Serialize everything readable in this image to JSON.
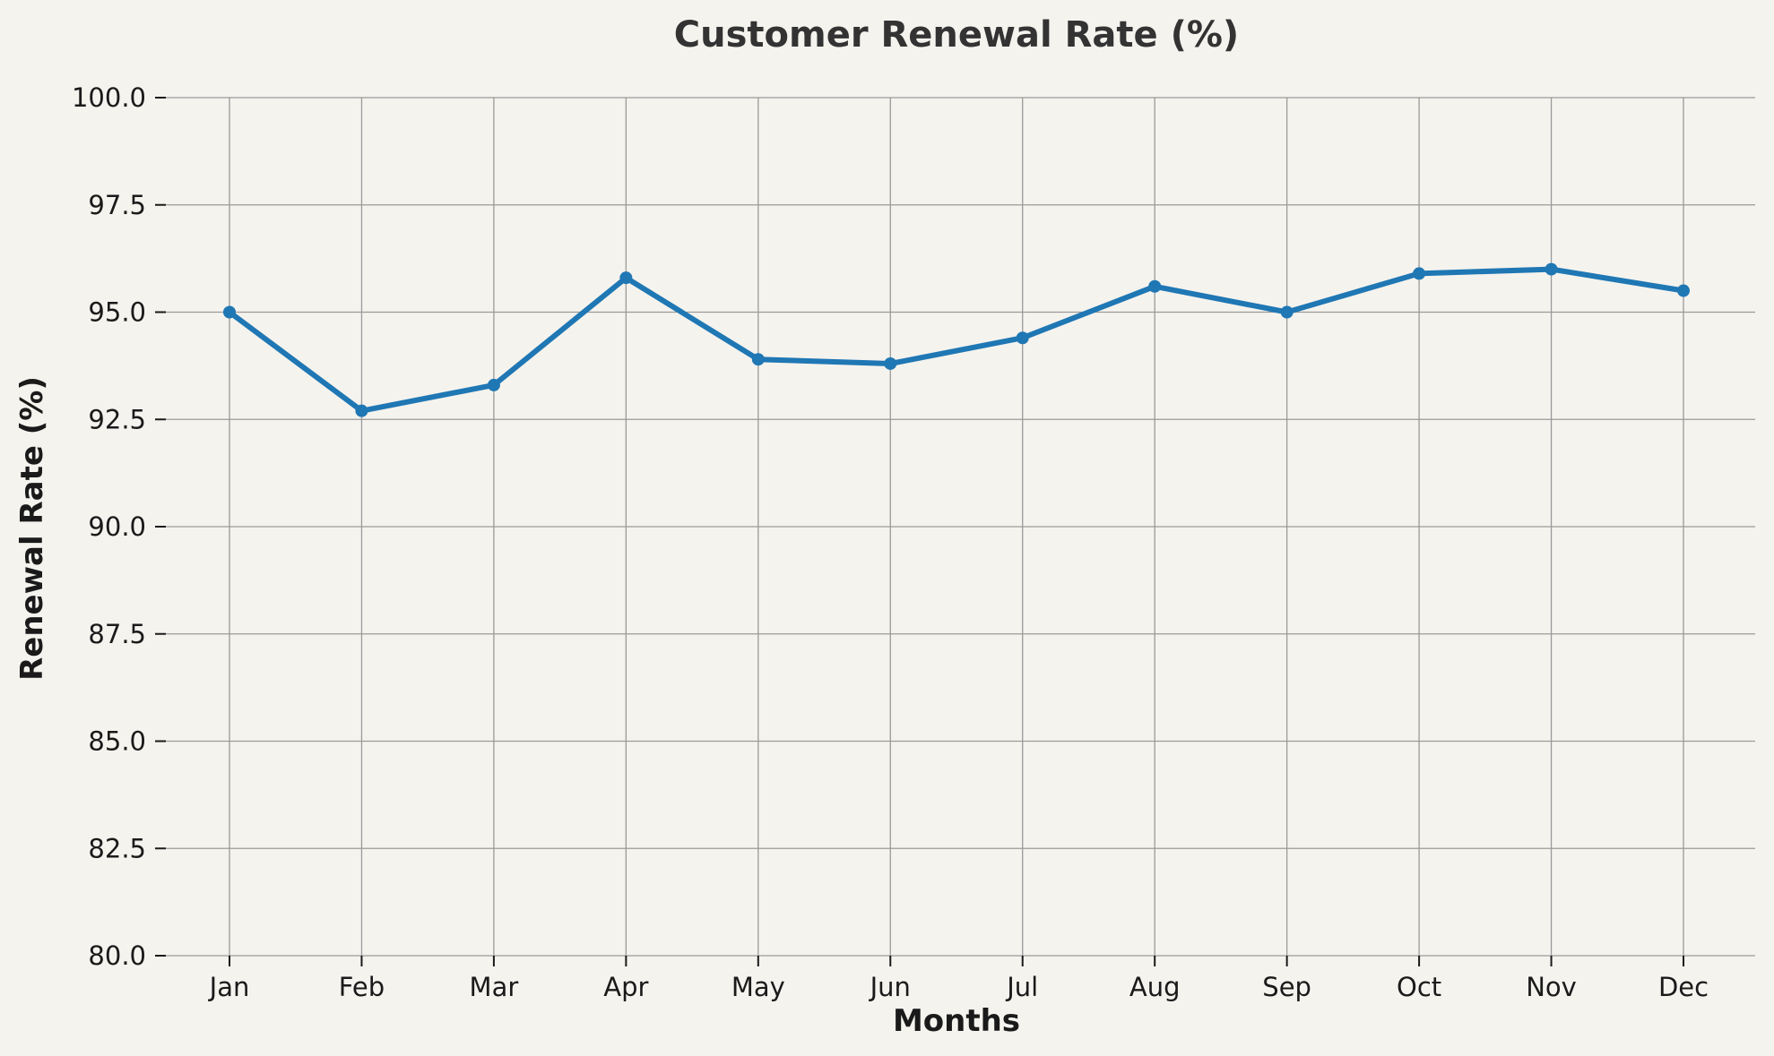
{
  "chart_data": {
    "type": "line",
    "title": "Customer Renewal Rate (%)",
    "xlabel": "Months",
    "ylabel": "Renewal Rate (%)",
    "categories": [
      "Jan",
      "Feb",
      "Mar",
      "Apr",
      "May",
      "Jun",
      "Jul",
      "Aug",
      "Sep",
      "Oct",
      "Nov",
      "Dec"
    ],
    "series": [
      {
        "values": [
          95.0,
          92.7,
          93.3,
          95.8,
          93.9,
          93.8,
          94.4,
          95.6,
          95.0,
          95.9,
          96.0,
          95.5
        ]
      }
    ],
    "ylim": [
      80,
      100
    ],
    "yticks": [
      "80.0",
      "82.5",
      "85.0",
      "87.5",
      "90.0",
      "92.5",
      "95.0",
      "97.5",
      "100.0"
    ],
    "grid": true,
    "legend": "none",
    "color": "#1f77b4"
  }
}
